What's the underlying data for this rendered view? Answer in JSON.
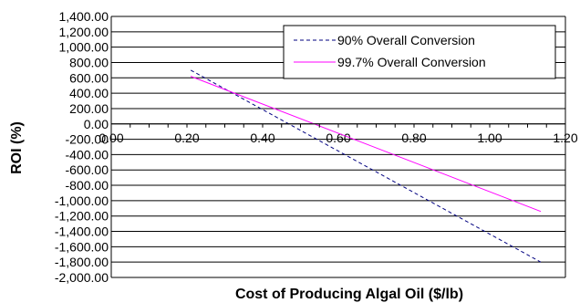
{
  "chart_data": {
    "type": "line",
    "xlabel": "Cost of Producing Algal Oil ($/lb)",
    "ylabel": "ROI (%)",
    "xlim": [
      0.0,
      1.2
    ],
    "ylim": [
      -2000,
      1400
    ],
    "x_ticks": [
      "0.00",
      "0.20",
      "0.40",
      "0.60",
      "0.80",
      "1.00",
      "1.20"
    ],
    "y_ticks": [
      "1,400.00",
      "1,200.00",
      "1,000.00",
      "800.00",
      "600.00",
      "400.00",
      "200.00",
      "0.00",
      "-200.00",
      "-400.00",
      "-600.00",
      "-800.00",
      "-1,000.00",
      "-1,200.00",
      "-1,400.00",
      "-1,600.00",
      "-1,800.00",
      "-2,000.00"
    ],
    "grid": "horizontal major gridlines",
    "legend_position": "top-right",
    "series": [
      {
        "name": "90% Overall Conversion",
        "color": "#000080",
        "dash": "dashed",
        "x": [
          0.21,
          1.135
        ],
        "y": [
          700,
          -1800
        ]
      },
      {
        "name": "99.7% Overall Conversion",
        "color": "#ff00ff",
        "dash": "solid",
        "x": [
          0.21,
          1.135
        ],
        "y": [
          620,
          -1140
        ]
      }
    ]
  }
}
